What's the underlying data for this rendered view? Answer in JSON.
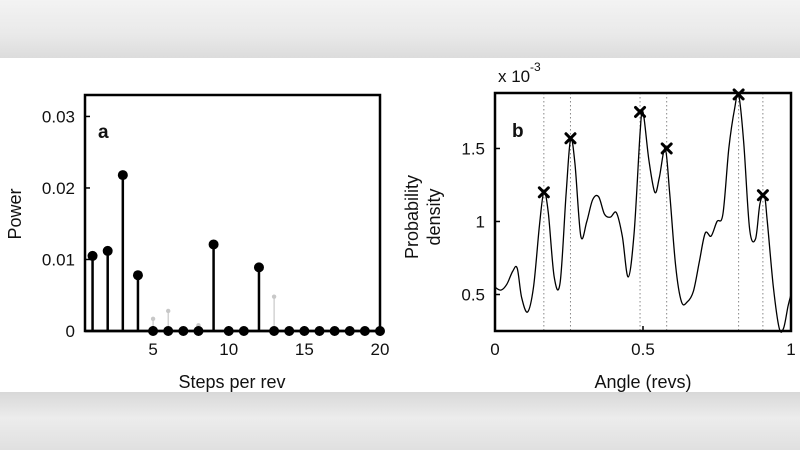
{
  "chart_data": [
    {
      "type": "stem",
      "panel_label": "a",
      "xlabel": "Steps per rev",
      "ylabel": "Power",
      "xlim": [
        0.5,
        20
      ],
      "ylim": [
        0,
        0.033
      ],
      "xticks": [
        5,
        10,
        15,
        20
      ],
      "yticks": [
        0,
        0.01,
        0.02,
        0.03
      ],
      "ytick_labels": [
        "0",
        "0.01",
        "0.02",
        "0.03"
      ],
      "grid": false,
      "series": [
        {
          "style": "black-stems",
          "x": [
            1,
            2,
            3,
            4,
            5,
            6,
            7,
            8,
            9,
            10,
            11,
            12,
            13,
            14,
            15,
            16,
            17,
            18,
            19,
            20
          ],
          "values": [
            0.0105,
            0.0112,
            0.0218,
            0.0078,
            0,
            0,
            0,
            0,
            0.0121,
            0,
            0,
            0.0089,
            0,
            0,
            0,
            0,
            0,
            0,
            0,
            0
          ]
        },
        {
          "style": "grey-stems",
          "x": [
            5,
            6,
            8,
            13
          ],
          "values": [
            0.0017,
            0.0028,
            0.0008,
            0.0048
          ]
        }
      ]
    },
    {
      "type": "line",
      "panel_label": "b",
      "xlabel": "Angle (revs)",
      "ylabel": [
        "Probability",
        "density"
      ],
      "y_exponent_label": "x 10",
      "y_exponent": "-3",
      "xlim": [
        0,
        1
      ],
      "ylim": [
        0.25,
        1.88
      ],
      "xticks": [
        0,
        0.5,
        1
      ],
      "xtick_labels": [
        "0",
        "0.5",
        "1"
      ],
      "yticks": [
        0.5,
        1,
        1.5
      ],
      "ytick_labels": [
        "0.5",
        "1",
        "1.5"
      ],
      "grid": false,
      "curve": {
        "x": [
          0,
          0.02,
          0.04,
          0.06,
          0.075,
          0.09,
          0.11,
          0.13,
          0.15,
          0.165,
          0.18,
          0.2,
          0.22,
          0.24,
          0.255,
          0.27,
          0.29,
          0.31,
          0.33,
          0.35,
          0.37,
          0.39,
          0.41,
          0.43,
          0.45,
          0.47,
          0.49,
          0.5,
          0.52,
          0.54,
          0.555,
          0.575,
          0.59,
          0.61,
          0.63,
          0.65,
          0.67,
          0.69,
          0.71,
          0.73,
          0.75,
          0.77,
          0.79,
          0.81,
          0.823,
          0.84,
          0.86,
          0.88,
          0.895,
          0.91,
          0.92,
          0.94,
          0.96,
          0.975,
          0.99,
          1.0
        ],
        "y": [
          0.55,
          0.53,
          0.57,
          0.66,
          0.68,
          0.48,
          0.38,
          0.55,
          0.97,
          1.2,
          1.06,
          0.62,
          0.58,
          1.18,
          1.56,
          1.4,
          0.9,
          1.0,
          1.15,
          1.17,
          1.05,
          1.03,
          1.06,
          0.9,
          0.62,
          0.92,
          1.6,
          1.75,
          1.42,
          1.2,
          1.3,
          1.5,
          1.2,
          0.7,
          0.45,
          0.45,
          0.52,
          0.72,
          0.92,
          0.9,
          1.0,
          1.05,
          1.5,
          1.78,
          1.87,
          1.55,
          0.95,
          0.88,
          1.12,
          1.18,
          1.0,
          0.56,
          0.27,
          0.27,
          0.42,
          0.5
        ]
      },
      "peaks": [
        {
          "x": 0.165,
          "y": 1.2
        },
        {
          "x": 0.255,
          "y": 1.57
        },
        {
          "x": 0.49,
          "y": 1.75
        },
        {
          "x": 0.58,
          "y": 1.5
        },
        {
          "x": 0.823,
          "y": 1.87
        },
        {
          "x": 0.905,
          "y": 1.18
        }
      ],
      "reference_lines_x": [
        0.165,
        0.255,
        0.49,
        0.58,
        0.823,
        0.905
      ]
    }
  ]
}
